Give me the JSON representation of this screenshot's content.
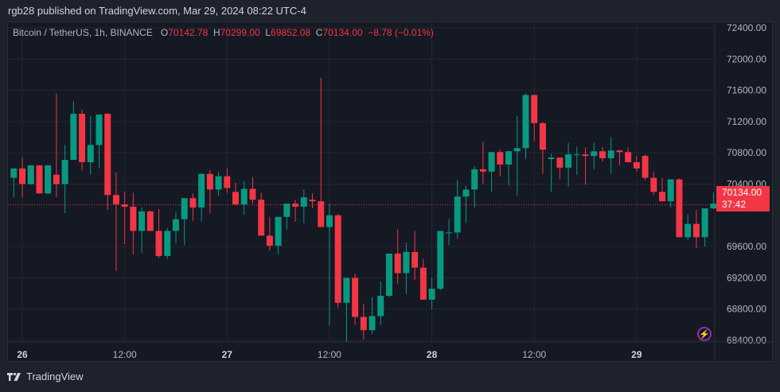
{
  "publisher_line": "rgb28 published on TradingView.com, Mar 29, 2024 08:22 UTC-4",
  "legend": {
    "symbol": "Bitcoin / TetherUS, 1h, BINANCE",
    "o_label": "O",
    "o_value": "70142.78",
    "h_label": "H",
    "h_value": "70299.00",
    "l_label": "L",
    "l_value": "69852.08",
    "c_label": "C",
    "c_value": "70134.00",
    "change": "−8.78 (−0.01%)"
  },
  "last_price": {
    "value": "70134.00",
    "countdown": "37:42"
  },
  "footer": {
    "brand": "TradingView"
  },
  "colors": {
    "up": "#089981",
    "down": "#f23645",
    "bg": "#151924",
    "grid": "#232733",
    "axis_text": "#b2b5be",
    "accent_bolt": "#9c27b0"
  },
  "chart_data": {
    "type": "candlestick",
    "title": "Bitcoin / TetherUS, 1h, BINANCE",
    "xlabel": "",
    "ylabel": "",
    "ylim": [
      68200,
      72500
    ],
    "y_ticks": [
      "72400.00",
      "72000.00",
      "71600.00",
      "71200.00",
      "70800.00",
      "70400.00",
      "69600.00",
      "69200.00",
      "68800.00",
      "68400.00"
    ],
    "x_ticks": [
      {
        "label": "26",
        "index": 1,
        "bold": true
      },
      {
        "label": "12:00",
        "index": 13,
        "bold": false
      },
      {
        "label": "27",
        "index": 25,
        "bold": true
      },
      {
        "label": "12:00",
        "index": 37,
        "bold": false
      },
      {
        "label": "28",
        "index": 49,
        "bold": true
      },
      {
        "label": "12:00",
        "index": 61,
        "bold": false
      },
      {
        "label": "29",
        "index": 73,
        "bold": true
      }
    ],
    "last_price": 70134.0,
    "candles": [
      [
        70480,
        70600,
        70230,
        70600
      ],
      [
        70600,
        70740,
        70230,
        70400
      ],
      [
        70400,
        70640,
        70390,
        70640
      ],
      [
        70640,
        70630,
        70280,
        70280
      ],
      [
        70280,
        70640,
        70270,
        70640
      ],
      [
        70520,
        71560,
        70230,
        70400
      ],
      [
        70400,
        70900,
        70030,
        70710
      ],
      [
        70710,
        71460,
        70750,
        71300
      ],
      [
        71300,
        71350,
        70570,
        70680
      ],
      [
        70680,
        71270,
        70520,
        70900
      ],
      [
        70900,
        71290,
        70600,
        71290
      ],
      [
        71300,
        71310,
        70070,
        70260
      ],
      [
        70260,
        70550,
        69290,
        70140
      ],
      [
        70140,
        70300,
        69630,
        70110
      ],
      [
        70110,
        70290,
        69500,
        69800
      ],
      [
        69800,
        70100,
        69520,
        70050
      ],
      [
        70050,
        70060,
        69960,
        69800
      ],
      [
        69800,
        70080,
        69450,
        69480
      ],
      [
        69480,
        69840,
        69440,
        69800
      ],
      [
        69800,
        70040,
        69640,
        69950
      ],
      [
        69950,
        70180,
        69620,
        70220
      ],
      [
        70220,
        70280,
        69930,
        70100
      ],
      [
        70100,
        70540,
        69920,
        70530
      ],
      [
        70530,
        70580,
        70030,
        70330
      ],
      [
        70330,
        70560,
        70250,
        70500
      ],
      [
        70500,
        70600,
        70290,
        70350
      ],
      [
        70300,
        70420,
        70130,
        70140
      ],
      [
        70140,
        70440,
        70010,
        70340
      ],
      [
        70340,
        70490,
        70150,
        70200
      ],
      [
        70200,
        70290,
        69820,
        69740
      ],
      [
        69740,
        69980,
        69550,
        69610
      ],
      [
        69610,
        69960,
        69500,
        69980
      ],
      [
        69980,
        70100,
        69820,
        70150
      ],
      [
        70150,
        70200,
        69920,
        70110
      ],
      [
        70110,
        70330,
        69900,
        70230
      ],
      [
        70200,
        70280,
        70090,
        70180
      ],
      [
        70180,
        71760,
        69900,
        69850
      ],
      [
        69850,
        70140,
        68590,
        70000
      ],
      [
        70000,
        70020,
        68820,
        68880
      ],
      [
        68880,
        69200,
        68380,
        69200
      ],
      [
        69200,
        69250,
        68600,
        68700
      ],
      [
        68700,
        68870,
        68410,
        68530
      ],
      [
        68530,
        68950,
        68480,
        68710
      ],
      [
        68710,
        69150,
        68600,
        68970
      ],
      [
        68970,
        69500,
        68950,
        69510
      ],
      [
        69510,
        69820,
        69120,
        69260
      ],
      [
        69260,
        69650,
        68990,
        69530
      ],
      [
        69530,
        69800,
        69170,
        69330
      ],
      [
        69330,
        69440,
        68930,
        68920
      ],
      [
        68920,
        69200,
        68800,
        69060
      ],
      [
        69060,
        69710,
        69040,
        69800
      ],
      [
        69780,
        69950,
        69620,
        69780
      ],
      [
        69780,
        70450,
        69700,
        70240
      ],
      [
        70240,
        70380,
        69900,
        70330
      ],
      [
        70330,
        70630,
        70100,
        70590
      ],
      [
        70590,
        70940,
        70400,
        70560
      ],
      [
        70560,
        70760,
        70300,
        70810
      ],
      [
        70810,
        70840,
        70500,
        70650
      ],
      [
        70650,
        70830,
        70380,
        70820
      ],
      [
        70820,
        71270,
        70250,
        70860
      ],
      [
        70860,
        71560,
        70720,
        71540
      ],
      [
        71540,
        71550,
        70950,
        71180
      ],
      [
        71180,
        71190,
        70530,
        70840
      ],
      [
        70720,
        70790,
        70300,
        70740
      ],
      [
        70740,
        70720,
        70460,
        70610
      ],
      [
        70610,
        70930,
        70370,
        70780
      ],
      [
        70780,
        70880,
        70520,
        70780
      ],
      [
        70780,
        70870,
        70390,
        70760
      ],
      [
        70760,
        70930,
        70590,
        70820
      ],
      [
        70820,
        70870,
        70690,
        70730
      ],
      [
        70730,
        71000,
        70530,
        70830
      ],
      [
        70830,
        70840,
        70640,
        70810
      ],
      [
        70810,
        70870,
        70680,
        70680
      ],
      [
        70680,
        70760,
        70560,
        70600
      ],
      [
        70760,
        70780,
        70450,
        70480
      ],
      [
        70480,
        70560,
        70260,
        70300
      ],
      [
        70300,
        70480,
        70250,
        70180
      ],
      [
        70180,
        70450,
        70100,
        70460
      ],
      [
        70460,
        70470,
        69760,
        69720
      ],
      [
        69720,
        70010,
        69690,
        69890
      ],
      [
        69890,
        70070,
        69580,
        69720
      ],
      [
        69720,
        70090,
        69600,
        70090
      ],
      [
        70090,
        70290,
        70080,
        70150
      ],
      [
        70142.78,
        70299,
        69852.08,
        70134
      ]
    ]
  }
}
